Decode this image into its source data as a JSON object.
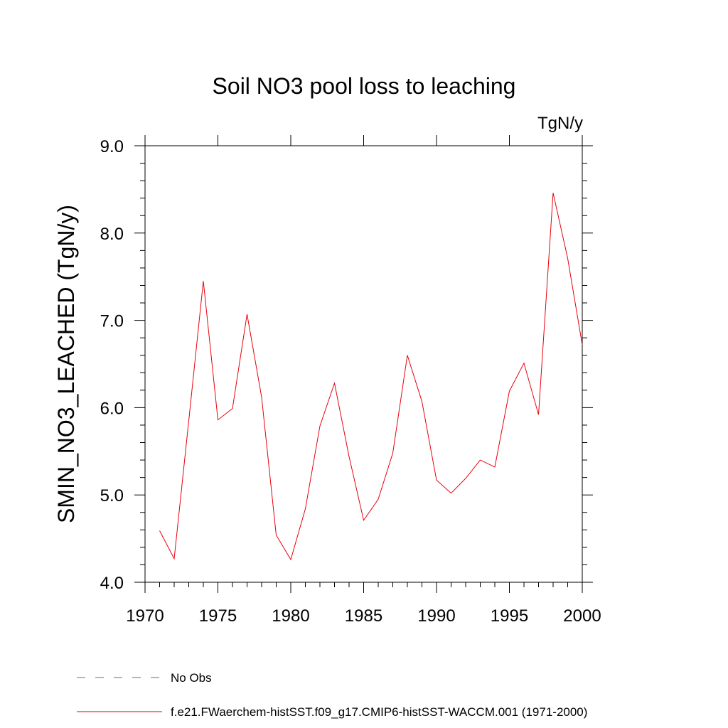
{
  "chart_data": {
    "type": "line",
    "title": "Soil NO3 pool loss to leaching",
    "units": "TgN/y",
    "ylabel": "SMIN_NO3_LEACHED  (TgN/y)",
    "xlabel": "",
    "xlim": [
      1970,
      2000
    ],
    "ylim": [
      4.0,
      9.0
    ],
    "xticks": [
      1970,
      1975,
      1980,
      1985,
      1990,
      1995,
      2000
    ],
    "yticks": [
      "4.0",
      "5.0",
      "6.0",
      "7.0",
      "8.0",
      "9.0"
    ],
    "grid": false,
    "legend_placement": "bottom",
    "series": [
      {
        "name": "f.e21.FWaerchem-histSST.f09_g17.CMIP6-histSST-WACCM.001 (1971-2000)",
        "color": "#e8000b",
        "dash": "solid",
        "x": [
          1971,
          1972,
          1973,
          1974,
          1975,
          1976,
          1977,
          1978,
          1979,
          1980,
          1981,
          1982,
          1983,
          1984,
          1985,
          1986,
          1987,
          1988,
          1989,
          1990,
          1991,
          1992,
          1993,
          1994,
          1995,
          1996,
          1997,
          1998,
          1999,
          2000
        ],
        "y": [
          4.59,
          4.27,
          5.85,
          7.45,
          5.86,
          5.99,
          7.07,
          6.12,
          4.54,
          4.26,
          4.84,
          5.79,
          6.28,
          5.44,
          4.71,
          4.95,
          5.48,
          6.6,
          6.07,
          5.17,
          5.02,
          5.19,
          5.4,
          5.32,
          6.19,
          6.51,
          5.92,
          8.46,
          7.71,
          6.72
        ]
      }
    ],
    "legend": [
      {
        "label": "No Obs",
        "color": "#6a5acd",
        "dash": "dashed"
      },
      {
        "label": "f.e21.FWaerchem-histSST.f09_g17.CMIP6-histSST-WACCM.001 (1971-2000)",
        "color": "#e8000b",
        "dash": "solid"
      }
    ]
  }
}
